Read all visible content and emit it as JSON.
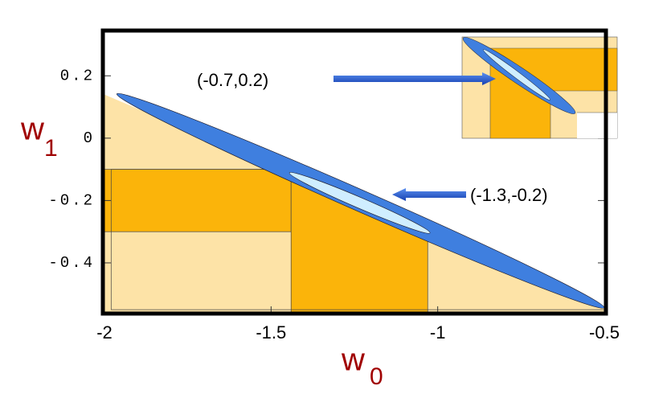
{
  "chart_data": {
    "type": "region",
    "xlabel": {
      "text": "w",
      "subscript": "0"
    },
    "ylabel": {
      "text": "w",
      "subscript": "1"
    },
    "xlim": [
      -2,
      -0.5
    ],
    "ylim": [
      -0.56,
      0.34
    ],
    "xticks": [
      -2,
      -1.5,
      -1,
      -0.5
    ],
    "yticks": [
      -0.4,
      -0.2,
      0,
      0.2
    ],
    "regions": [
      {
        "x": [
          -2,
          -0.5
        ],
        "y": [
          -0.56,
          0.15
        ],
        "color": "#fde3a7"
      },
      {
        "x": [
          -2,
          -1.44
        ],
        "y": [
          -0.3,
          -0.1
        ],
        "color": "#fbb40a"
      },
      {
        "x": [
          -1.44,
          -1.03
        ],
        "y": [
          -0.56,
          -0.1
        ],
        "color": "#fbb40a"
      },
      {
        "x": [
          -1.98,
          -0.5
        ],
        "y": [
          -0.55,
          -0.1
        ],
        "color": "none"
      }
    ],
    "ellipses": [
      {
        "from": [
          -1.963,
          0.142
        ],
        "to": [
          -0.5,
          -0.544
        ],
        "aspect": 0.04,
        "color": "#3f7fdf"
      },
      {
        "from": [
          -1.445,
          -0.111
        ],
        "to": [
          -1.023,
          -0.304
        ],
        "aspect": 0.07,
        "color": "#cfeeff"
      }
    ],
    "annotations": [
      "(-0.7,0.2)",
      "(-1.3,-0.2)"
    ]
  }
}
